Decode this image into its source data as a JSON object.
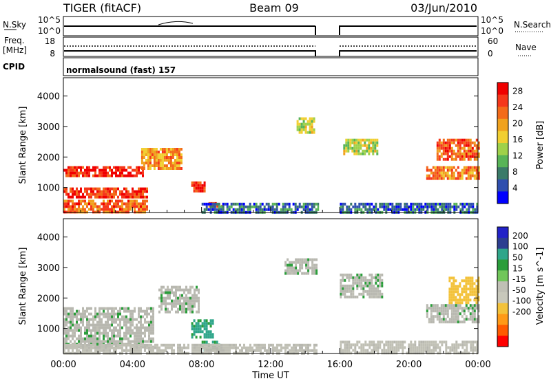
{
  "header": {
    "radar": "TIGER (fitACF)",
    "beam": "Beam 09",
    "date": "03/Jun/2010"
  },
  "nsky_panel": {
    "left_label": "N.Sky",
    "left_ticks": [
      "10^5",
      "10^0"
    ],
    "right_label": "N.Search",
    "right_ticks": [
      "10^5",
      "10^0"
    ]
  },
  "freq_panel": {
    "left_label_1": "Freq.",
    "left_label_2": "[MHz]",
    "left_ticks": [
      "18",
      "8"
    ],
    "right_label": "Nave",
    "right_ticks": [
      "60",
      "0"
    ]
  },
  "cpid_panel": {
    "label": "CPID",
    "text": "normalsound (fast) 157"
  },
  "colors": {
    "power": [
      "#0000ff",
      "#2f4fae",
      "#3a7a68",
      "#58b457",
      "#9fd14a",
      "#f1cf31",
      "#f0a21e",
      "#f36b19",
      "#f5371a",
      "#f00000"
    ],
    "velocity": [
      "#ff0000",
      "#ff5a00",
      "#ff9a17",
      "#f3c23a",
      "#c8c8bb",
      "#c0c0b5",
      "#71c65a",
      "#2a9d3a",
      "#2fa68a",
      "#2c3e90",
      "#2222c8"
    ],
    "ground_scatter": "#b8b8b0"
  },
  "chart_data": [
    {
      "type": "heatmap",
      "title": "",
      "xlabel": "Time UT",
      "ylabel": "Slant Range [km]",
      "x_ticks": [
        "00:00",
        "04:00",
        "08:00",
        "12:00",
        "16:00",
        "20:00",
        "00:00"
      ],
      "y_ticks": [
        1000,
        2000,
        3000,
        4000
      ],
      "xlim_hours": [
        0,
        24
      ],
      "ylim_km": [
        180,
        4600
      ],
      "data_gap_hours": [
        14.8,
        16.0
      ],
      "colorbar": {
        "label": "Power [dB]",
        "ticks": [
          4,
          8,
          12,
          16,
          20,
          24,
          28
        ],
        "range": [
          0,
          30
        ]
      },
      "scatter_regions": [
        {
          "t0": 0.0,
          "t1": 4.6,
          "r0": 1400,
          "r1": 1700,
          "value": 27
        },
        {
          "t0": 0.0,
          "t1": 4.8,
          "r0": 700,
          "r1": 1000,
          "value": 26
        },
        {
          "t0": 0.0,
          "t1": 4.8,
          "r0": 200,
          "r1": 600,
          "value": 23
        },
        {
          "t0": 4.5,
          "t1": 6.8,
          "r0": 1600,
          "r1": 2300,
          "value": 20
        },
        {
          "t0": 7.4,
          "t1": 8.2,
          "r0": 850,
          "r1": 1200,
          "value": 27
        },
        {
          "t0": 8.4,
          "t1": 9.2,
          "r0": 350,
          "r1": 520,
          "value": 25
        },
        {
          "t0": 8.0,
          "t1": 14.7,
          "r0": 200,
          "r1": 500,
          "value": 6
        },
        {
          "t0": 13.5,
          "t1": 14.5,
          "r0": 2800,
          "r1": 3300,
          "value": 14
        },
        {
          "t0": 16.0,
          "t1": 24.0,
          "r0": 200,
          "r1": 500,
          "value": 6
        },
        {
          "t0": 16.2,
          "t1": 18.2,
          "r0": 2100,
          "r1": 2600,
          "value": 14
        },
        {
          "t0": 21.6,
          "t1": 24.0,
          "r0": 1900,
          "r1": 2600,
          "value": 24
        },
        {
          "t0": 21.0,
          "t1": 24.0,
          "r0": 1300,
          "r1": 1700,
          "value": 22
        }
      ]
    },
    {
      "type": "heatmap",
      "title": "",
      "xlabel": "Time UT",
      "ylabel": "Slant Range [km]",
      "x_ticks": [
        "00:00",
        "04:00",
        "08:00",
        "12:00",
        "16:00",
        "20:00",
        "00:00"
      ],
      "y_ticks": [
        1000,
        2000,
        3000,
        4000
      ],
      "xlim_hours": [
        0,
        24
      ],
      "ylim_km": [
        180,
        4600
      ],
      "data_gap_hours": [
        14.8,
        16.0
      ],
      "colorbar": {
        "label": "Velocity [m s^-1]",
        "ticks": [
          200,
          100,
          50,
          15,
          -15,
          -50,
          -100,
          -200
        ]
      },
      "scatter_regions": [
        {
          "t0": 0.0,
          "t1": 5.2,
          "r0": 400,
          "r1": 1700,
          "value": 0
        },
        {
          "t0": 5.5,
          "t1": 7.8,
          "r0": 1500,
          "r1": 2400,
          "value": 0
        },
        {
          "t0": 7.4,
          "t1": 8.6,
          "r0": 700,
          "r1": 1300,
          "value": 60
        },
        {
          "t0": 8.0,
          "t1": 9.0,
          "r0": 300,
          "r1": 600,
          "value": 40
        },
        {
          "t0": 0.0,
          "t1": 14.7,
          "r0": 200,
          "r1": 500,
          "value": -25
        },
        {
          "t0": 16.0,
          "t1": 24.0,
          "r0": 200,
          "r1": 600,
          "value": -25
        },
        {
          "t0": 16.0,
          "t1": 18.5,
          "r0": 2000,
          "r1": 2800,
          "value": 0
        },
        {
          "t0": 12.8,
          "t1": 14.6,
          "r0": 2800,
          "r1": 3300,
          "value": 0
        },
        {
          "t0": 22.3,
          "t1": 24.0,
          "r0": 1800,
          "r1": 2700,
          "value": -150
        },
        {
          "t0": 21.0,
          "t1": 24.0,
          "r0": 1200,
          "r1": 1800,
          "value": 0
        }
      ]
    }
  ]
}
